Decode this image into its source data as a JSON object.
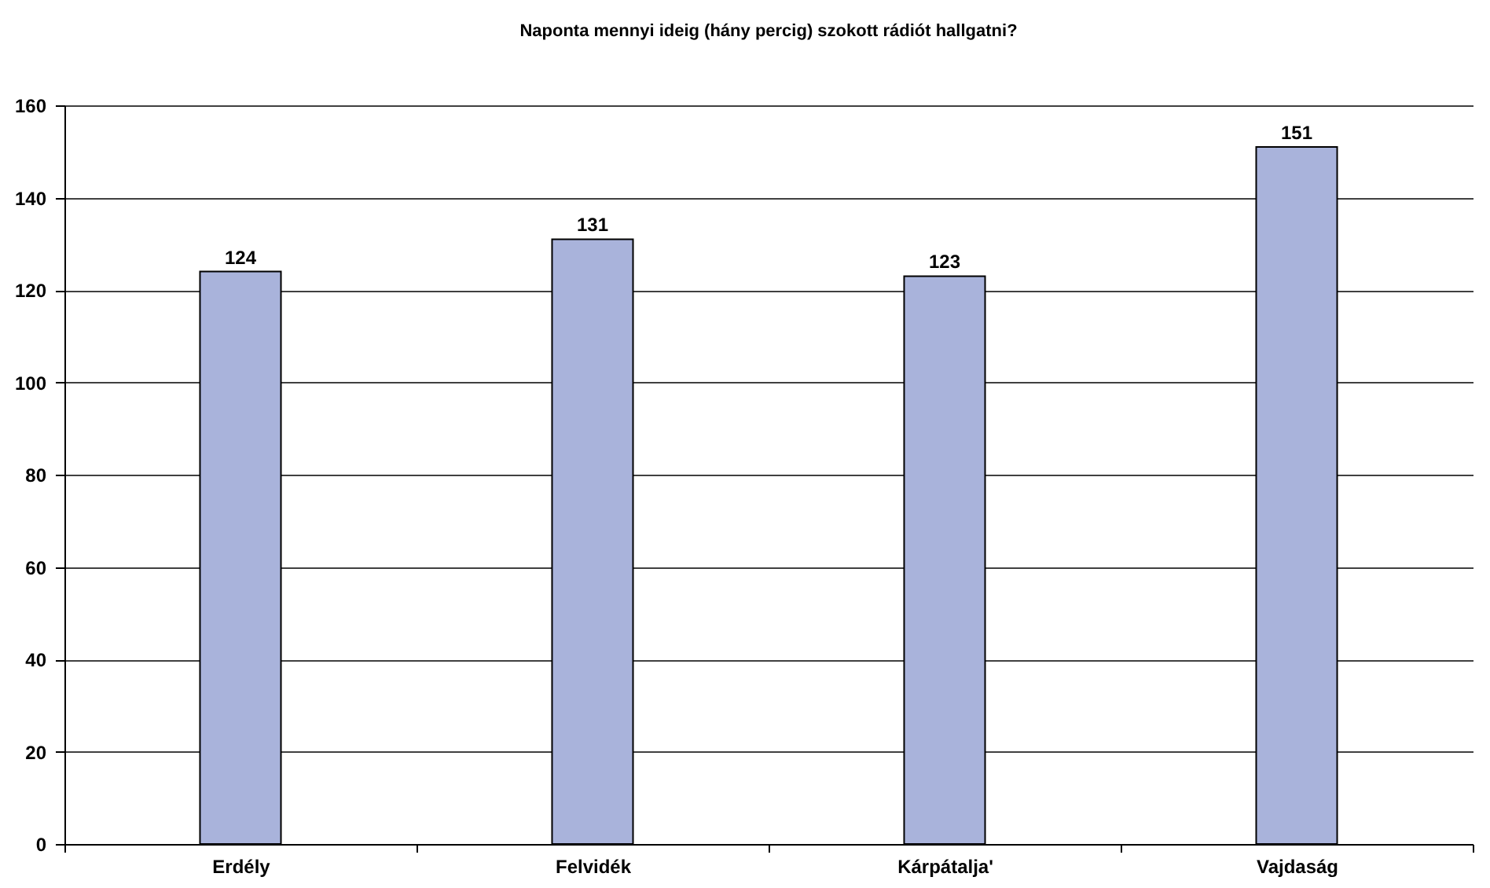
{
  "chart_data": {
    "type": "bar",
    "title": "Naponta mennyi ideig (hány percig) szokott rádiót hallgatni?",
    "categories": [
      "Erdély",
      "Felvidék",
      "Kárpátalja'",
      "Vajdaság"
    ],
    "values": [
      124,
      131,
      123,
      151
    ],
    "color": "#a9b3db",
    "ylim": [
      0,
      160
    ],
    "yticks": [
      0,
      20,
      40,
      60,
      80,
      100,
      120,
      140,
      160
    ],
    "grid": "y",
    "data_labels": true
  }
}
